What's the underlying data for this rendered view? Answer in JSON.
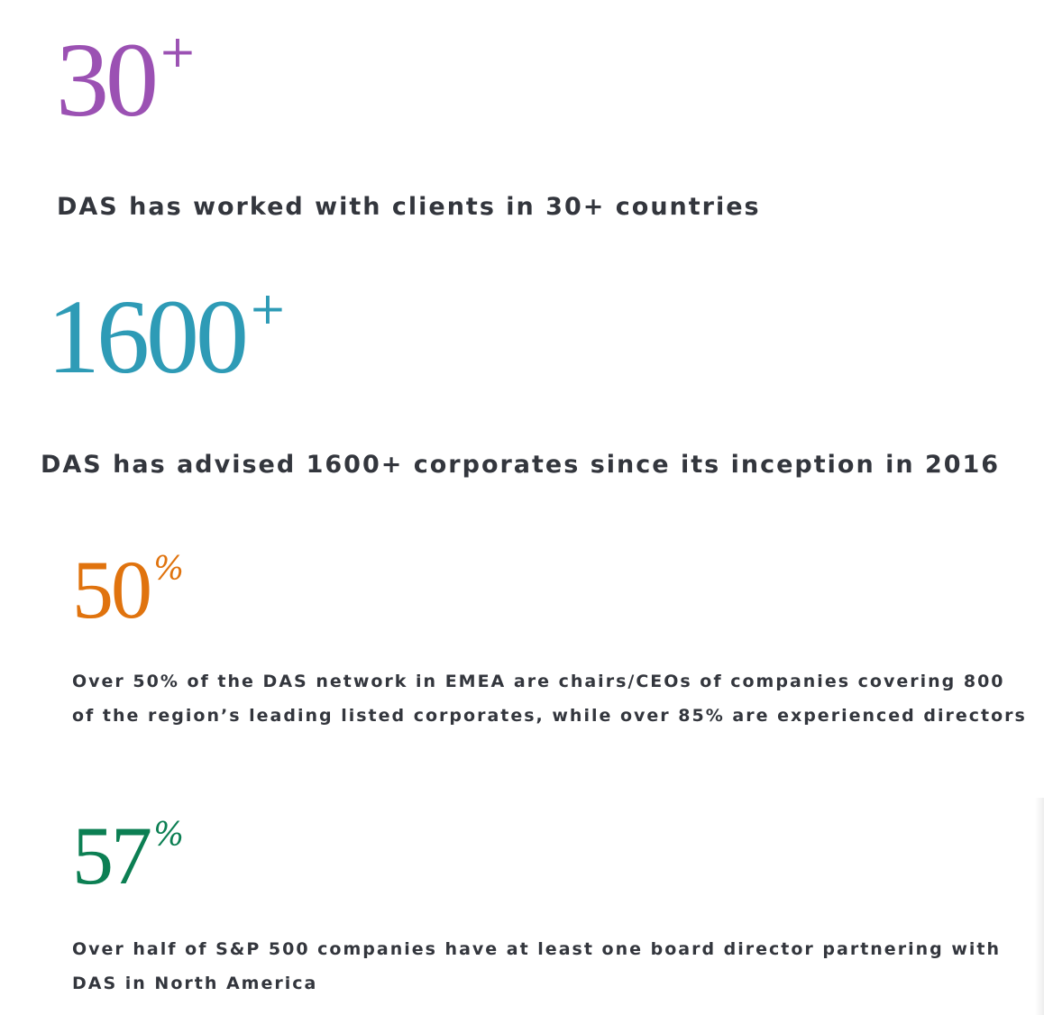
{
  "stats": [
    {
      "number": "30",
      "suffix": "+",
      "color": "#9b51b3",
      "description": "DAS has worked with clients in 30+ countries"
    },
    {
      "number": "1600",
      "suffix": "+",
      "color": "#2e9bb6",
      "description": "DAS has advised 1600+ corporates since its inception in 2016"
    },
    {
      "number": "50",
      "suffix": "%",
      "color": "#e0730e",
      "description": "Over 50% of the DAS network in EMEA are chairs/CEOs of companies covering 800 of the region’s leading listed corporates, while over 85% are experienced directors"
    },
    {
      "number": "57",
      "suffix": "%",
      "color": "#0c7f53",
      "description": "Over half of S&P 500 companies have at least one board director partnering with DAS in North America"
    }
  ]
}
